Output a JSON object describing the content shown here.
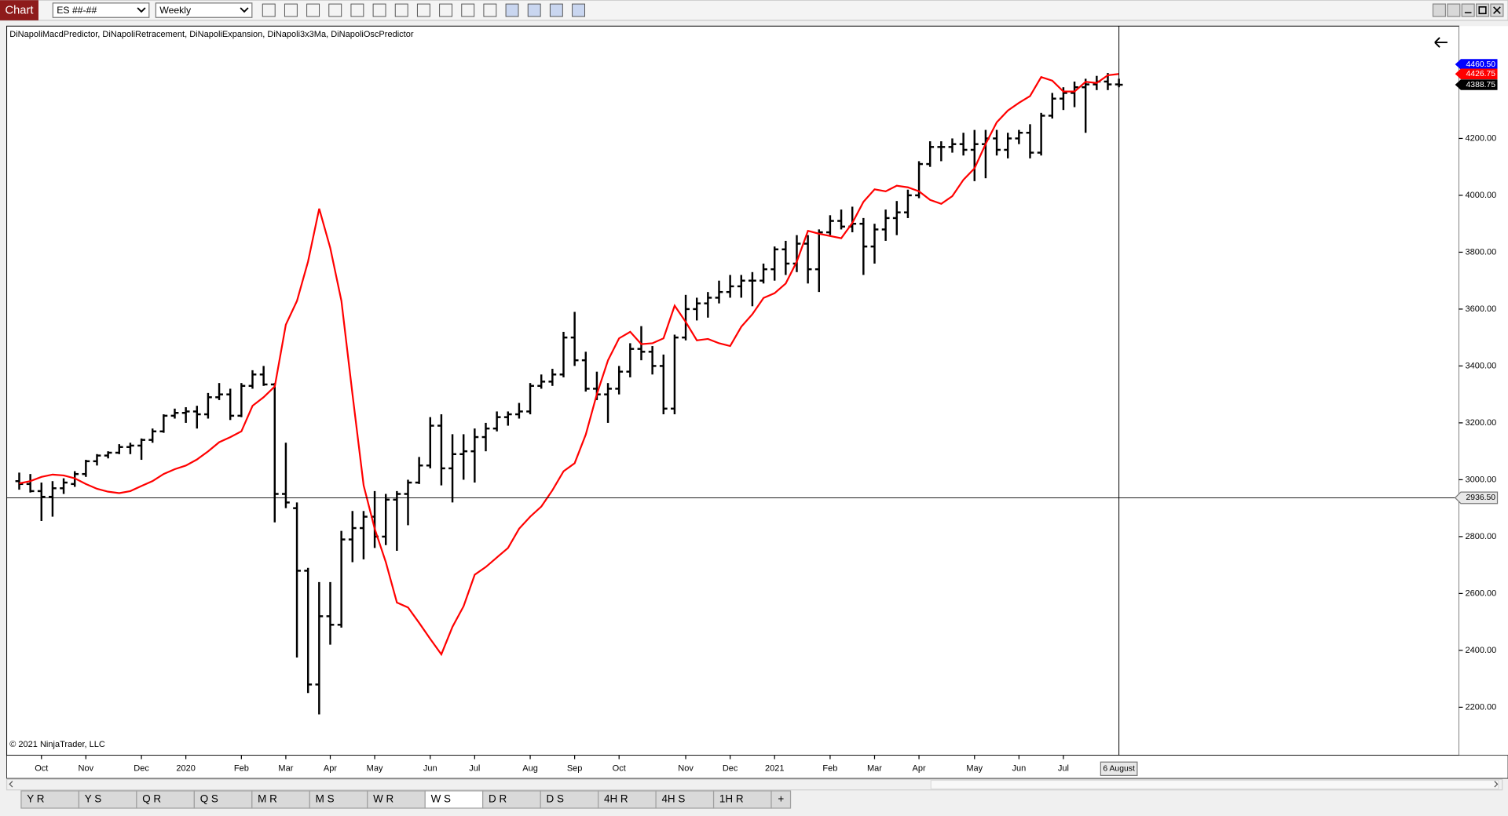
{
  "toolbar": {
    "title": "Chart",
    "instrument": "ES ##-##",
    "period": "Weekly"
  },
  "tabs": [
    "Y R",
    "Y S",
    "Q R",
    "Q S",
    "M R",
    "M S",
    "W R",
    "W S",
    "D R",
    "D S",
    "4H R",
    "4H S",
    "1H R",
    "+"
  ],
  "active_tab": 7,
  "chart_data": {
    "type": "ohlc",
    "indicators": "DiNapoliMacdPredictor, DiNapoliRetracement, DiNapoliExpansion, DiNapoli3x3Ma, DiNapoliOscPredictor",
    "copyright": "© 2021 NinjaTrader, LLC",
    "color": "#000000",
    "grid": false,
    "ylim": [
      2031,
      4595
    ],
    "yticks": [
      {
        "value": 2200,
        "label": "2200.00"
      },
      {
        "value": 2400,
        "label": "2400.00"
      },
      {
        "value": 2600,
        "label": "2600.00"
      },
      {
        "value": 2800,
        "label": "2800.00"
      },
      {
        "value": 3000,
        "label": "3000.00"
      },
      {
        "value": 3200,
        "label": "3200.00"
      },
      {
        "value": 3400,
        "label": "3400.00"
      },
      {
        "value": 3600,
        "label": "3600.00"
      },
      {
        "value": 3800,
        "label": "3800.00"
      },
      {
        "value": 4000,
        "label": "4000.00"
      },
      {
        "value": 4200,
        "label": "4200.00"
      }
    ],
    "categories": [
      null,
      null,
      "Oct",
      null,
      null,
      null,
      "Nov",
      null,
      null,
      null,
      null,
      "Dec",
      null,
      null,
      null,
      "2020",
      null,
      null,
      null,
      null,
      "Feb",
      null,
      null,
      null,
      "Mar",
      null,
      null,
      null,
      "Apr",
      null,
      null,
      null,
      "May",
      null,
      null,
      null,
      null,
      "Jun",
      null,
      null,
      null,
      "Jul",
      null,
      null,
      null,
      null,
      "Aug",
      null,
      null,
      null,
      "Sep",
      null,
      null,
      null,
      "Oct",
      null,
      null,
      null,
      null,
      null,
      "Nov",
      null,
      null,
      null,
      "Dec",
      null,
      null,
      null,
      "2021",
      null,
      null,
      null,
      null,
      "Feb",
      null,
      null,
      null,
      "Mar",
      null,
      null,
      null,
      "Apr",
      null,
      null,
      null,
      null,
      "May",
      null,
      null,
      null,
      "Jun",
      null,
      null,
      null,
      "Jul",
      null,
      null,
      null,
      null,
      null,
      null
    ],
    "open": [
      2995,
      2985,
      2960,
      2940,
      2970,
      2985,
      3020,
      3065,
      3085,
      3095,
      3115,
      3120,
      3140,
      3170,
      3225,
      3235,
      3240,
      3230,
      3290,
      3300,
      3225,
      3330,
      3370,
      3335,
      2950,
      2900,
      2680,
      2280,
      2520,
      2490,
      2790,
      2830,
      2870,
      2800,
      2930,
      2950,
      2990,
      3050,
      3190,
      3040,
      3090,
      3100,
      3150,
      3180,
      3220,
      3230,
      3240,
      3330,
      3345,
      3370,
      3500,
      3420,
      3320,
      3300,
      3320,
      3380,
      3460,
      3450,
      3400,
      3250,
      3500,
      3600,
      3620,
      3640,
      3660,
      3680,
      3700,
      3700,
      3740,
      3810,
      3760,
      3830,
      3740,
      3870,
      3910,
      3890,
      3900,
      3820,
      3880,
      3920,
      3940,
      4000,
      4110,
      4170,
      4170,
      4180,
      4160,
      4180,
      4200,
      4160,
      4200,
      4220,
      4150,
      4280,
      4340,
      4360,
      4380,
      4390,
      4400,
      4390,
      null
    ],
    "high": [
      3025,
      3020,
      2990,
      2995,
      3005,
      3030,
      3070,
      3090,
      3100,
      3125,
      3130,
      3145,
      3180,
      3230,
      3250,
      3255,
      3260,
      3305,
      3340,
      3320,
      3340,
      3385,
      3400,
      3340,
      3130,
      2920,
      2690,
      2640,
      2640,
      2820,
      2890,
      2890,
      2960,
      2950,
      2960,
      3000,
      3080,
      3220,
      3230,
      3160,
      3160,
      3180,
      3200,
      3240,
      3240,
      3270,
      3340,
      3370,
      3390,
      3520,
      3590,
      3450,
      3380,
      3340,
      3400,
      3480,
      3540,
      3470,
      3440,
      3510,
      3650,
      3640,
      3660,
      3700,
      3720,
      3720,
      3730,
      3760,
      3820,
      3840,
      3860,
      3860,
      3880,
      3930,
      3950,
      3960,
      3920,
      3900,
      3950,
      3980,
      4020,
      4120,
      4190,
      4190,
      4200,
      4220,
      4230,
      4230,
      4230,
      4220,
      4230,
      4250,
      4290,
      4360,
      4380,
      4400,
      4410,
      4420,
      4430,
      4410,
      null
    ],
    "low": [
      2965,
      2955,
      2855,
      2870,
      2950,
      2975,
      3010,
      3050,
      3075,
      3090,
      3090,
      3070,
      3130,
      3165,
      3215,
      3200,
      3180,
      3215,
      3280,
      3210,
      3220,
      3320,
      3330,
      2850,
      2900,
      2375,
      2250,
      2175,
      2420,
      2480,
      2710,
      2720,
      2760,
      2770,
      2750,
      2840,
      2985,
      3040,
      2980,
      2920,
      3000,
      2990,
      3100,
      3170,
      3190,
      3215,
      3230,
      3320,
      3330,
      3360,
      3400,
      3310,
      3280,
      3200,
      3300,
      3360,
      3420,
      3370,
      3230,
      3230,
      3490,
      3560,
      3570,
      3620,
      3640,
      3640,
      3610,
      3690,
      3700,
      3720,
      3730,
      3690,
      3660,
      3860,
      3880,
      3870,
      3720,
      3760,
      3840,
      3860,
      3920,
      3990,
      4100,
      4120,
      4150,
      4140,
      4050,
      4060,
      4140,
      4130,
      4180,
      4130,
      4140,
      4270,
      4300,
      4310,
      4220,
      4370,
      4370,
      4380,
      null
    ],
    "close": [
      2985,
      2960,
      2940,
      2970,
      2990,
      3020,
      3065,
      3085,
      3095,
      3115,
      3120,
      3140,
      3170,
      3225,
      3235,
      3240,
      3230,
      3290,
      3300,
      3225,
      3330,
      3370,
      3335,
      2950,
      2920,
      2680,
      2280,
      2520,
      2490,
      2790,
      2830,
      2870,
      2800,
      2930,
      2950,
      2990,
      3050,
      3190,
      3040,
      3090,
      3100,
      3150,
      3180,
      3220,
      3230,
      3240,
      3330,
      3345,
      3370,
      3500,
      3420,
      3320,
      3300,
      3320,
      3380,
      3460,
      3450,
      3400,
      3250,
      3500,
      3600,
      3620,
      3640,
      3660,
      3680,
      3700,
      3700,
      3740,
      3810,
      3760,
      3830,
      3740,
      3870,
      3910,
      3890,
      3900,
      3820,
      3880,
      3920,
      3940,
      4000,
      4110,
      4170,
      4170,
      4180,
      4160,
      4180,
      4200,
      4160,
      4200,
      4220,
      4150,
      4280,
      4340,
      4360,
      4380,
      4390,
      4400,
      4390,
      4388.75,
      null
    ],
    "series": [
      {
        "color": "#ff0000",
        "values": [
          2987,
          2995,
          3010,
          3018,
          3015,
          3005,
          2985,
          2968,
          2958,
          2953,
          2960,
          2978,
          2995,
          3020,
          3037,
          3050,
          3071,
          3100,
          3132,
          3150,
          3170,
          3260,
          3290,
          3328,
          3545,
          3629,
          3767,
          3953,
          3815,
          3629,
          3301,
          2980,
          2828,
          2710,
          2568,
          2551,
          2497,
          2440,
          2386,
          2483,
          2555,
          2666,
          2693,
          2727,
          2760,
          2828,
          2870,
          2906,
          2963,
          3030,
          3058,
          3159,
          3301,
          3420,
          3497,
          3520,
          3477,
          3480,
          3497,
          3612,
          3555,
          3490,
          3495,
          3480,
          3470,
          3538,
          3582,
          3639,
          3656,
          3690,
          3767,
          3875,
          3865,
          3857,
          3849,
          3903,
          3977,
          4021,
          4014,
          4034,
          4028,
          4014,
          3984,
          3970,
          3997,
          4055,
          4095,
          4180,
          4257,
          4298,
          4325,
          4349,
          4416,
          4403,
          4365,
          4365,
          4399,
          4395,
          4422,
          4426.75,
          null
        ]
      },
      {
        "color": "#0000ff",
        "values": [
          null,
          null,
          null,
          null,
          null,
          null,
          null,
          null,
          null,
          null,
          null,
          null,
          null,
          null,
          null,
          null,
          null,
          null,
          null,
          null,
          null,
          null,
          null,
          null,
          null,
          null,
          null,
          null,
          null,
          null,
          null,
          null,
          null,
          null,
          null,
          null,
          null,
          null,
          null,
          null,
          null,
          null,
          null,
          null,
          null,
          null,
          null,
          null,
          null,
          null,
          null,
          null,
          null,
          null,
          null,
          null,
          null,
          null,
          null,
          null,
          null,
          null,
          null,
          null,
          null,
          null,
          null,
          null,
          null,
          null,
          null,
          null,
          null,
          null,
          null,
          null,
          null,
          null,
          null,
          null,
          null,
          null,
          null,
          null,
          null,
          null,
          null,
          null,
          null,
          null,
          null,
          null,
          null,
          null,
          null,
          null,
          null,
          null,
          4395,
          null,
          4460.5
        ]
      }
    ],
    "price_markers": [
      {
        "value": 4460.5,
        "label": "4460.50",
        "color": "#0000ff"
      },
      {
        "value": 4426.75,
        "label": "4426.75",
        "color": "#ff0000"
      },
      {
        "value": 4388.75,
        "label": "4388.75",
        "color": "#000000"
      }
    ],
    "crosshair": {
      "value": 2936.5,
      "label": "2936.50",
      "x_label": "6 August"
    }
  }
}
